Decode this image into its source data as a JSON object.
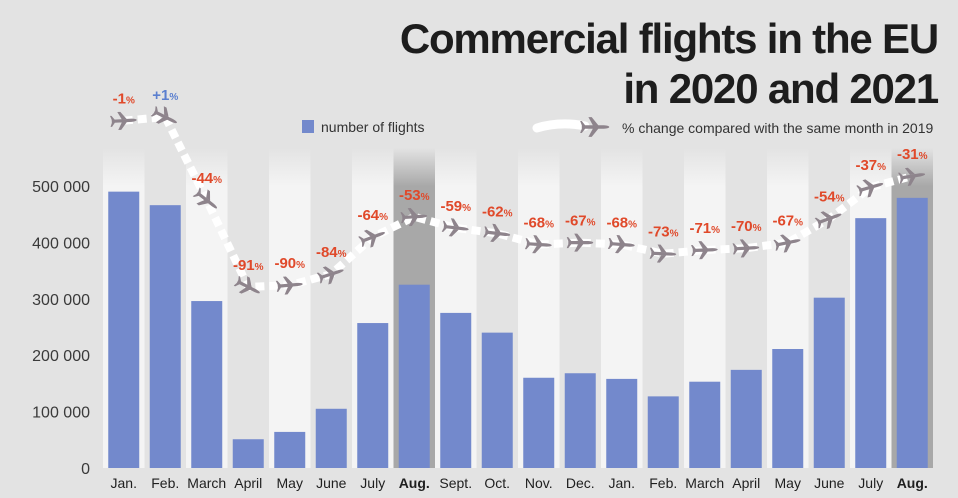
{
  "title_line1": "Commercial flights in the EU",
  "title_line2": "in 2020 and 2021",
  "colors": {
    "bar": "#7389cc",
    "negative_label": "#e0492a",
    "positive_label": "#5b7fcf",
    "plane": "#8e848c",
    "highlight": "#a8a8a8"
  },
  "icons": {
    "plane": "plane-icon"
  },
  "chart_data": {
    "type": "bar",
    "categories": [
      "Jan.",
      "Feb.",
      "March",
      "April",
      "May",
      "June",
      "July",
      "Aug.",
      "Sept.",
      "Oct.",
      "Nov.",
      "Dec.",
      "Jan.",
      "Feb.",
      "March",
      "April",
      "May",
      "June",
      "July",
      "Aug."
    ],
    "bold_categories": [
      "Aug."
    ],
    "series": [
      {
        "name": "number of flights",
        "values": [
          490000,
          466000,
          296000,
          51000,
          64000,
          105000,
          257000,
          325000,
          275000,
          240000,
          160000,
          168000,
          158000,
          127000,
          153000,
          174000,
          211000,
          302000,
          443000,
          479000
        ]
      },
      {
        "name": "% change compared with the same month in 2019",
        "values": [
          -1,
          1,
          -44,
          -91,
          -90,
          -84,
          -64,
          -53,
          -59,
          -62,
          -68,
          -67,
          -68,
          -73,
          -71,
          -70,
          -67,
          -54,
          -37,
          -31
        ],
        "labels": [
          "-1",
          "+1",
          "-44",
          "-91",
          "-90",
          "-84",
          "-64",
          "-53",
          "-59",
          "-62",
          "-68",
          "-67",
          "-68",
          "-73",
          "-71",
          "-70",
          "-67",
          "-54",
          "-37",
          "-31"
        ],
        "unit": "%"
      }
    ],
    "yticks": [
      "500 000",
      "400 000",
      "300 000",
      "200 000",
      "100 000",
      "0"
    ],
    "ytick_values": [
      500000,
      400000,
      300000,
      200000,
      100000,
      0
    ],
    "ylim": [
      0,
      500000
    ],
    "highlighted_columns": [
      7,
      19
    ],
    "legend_placement": "top"
  }
}
